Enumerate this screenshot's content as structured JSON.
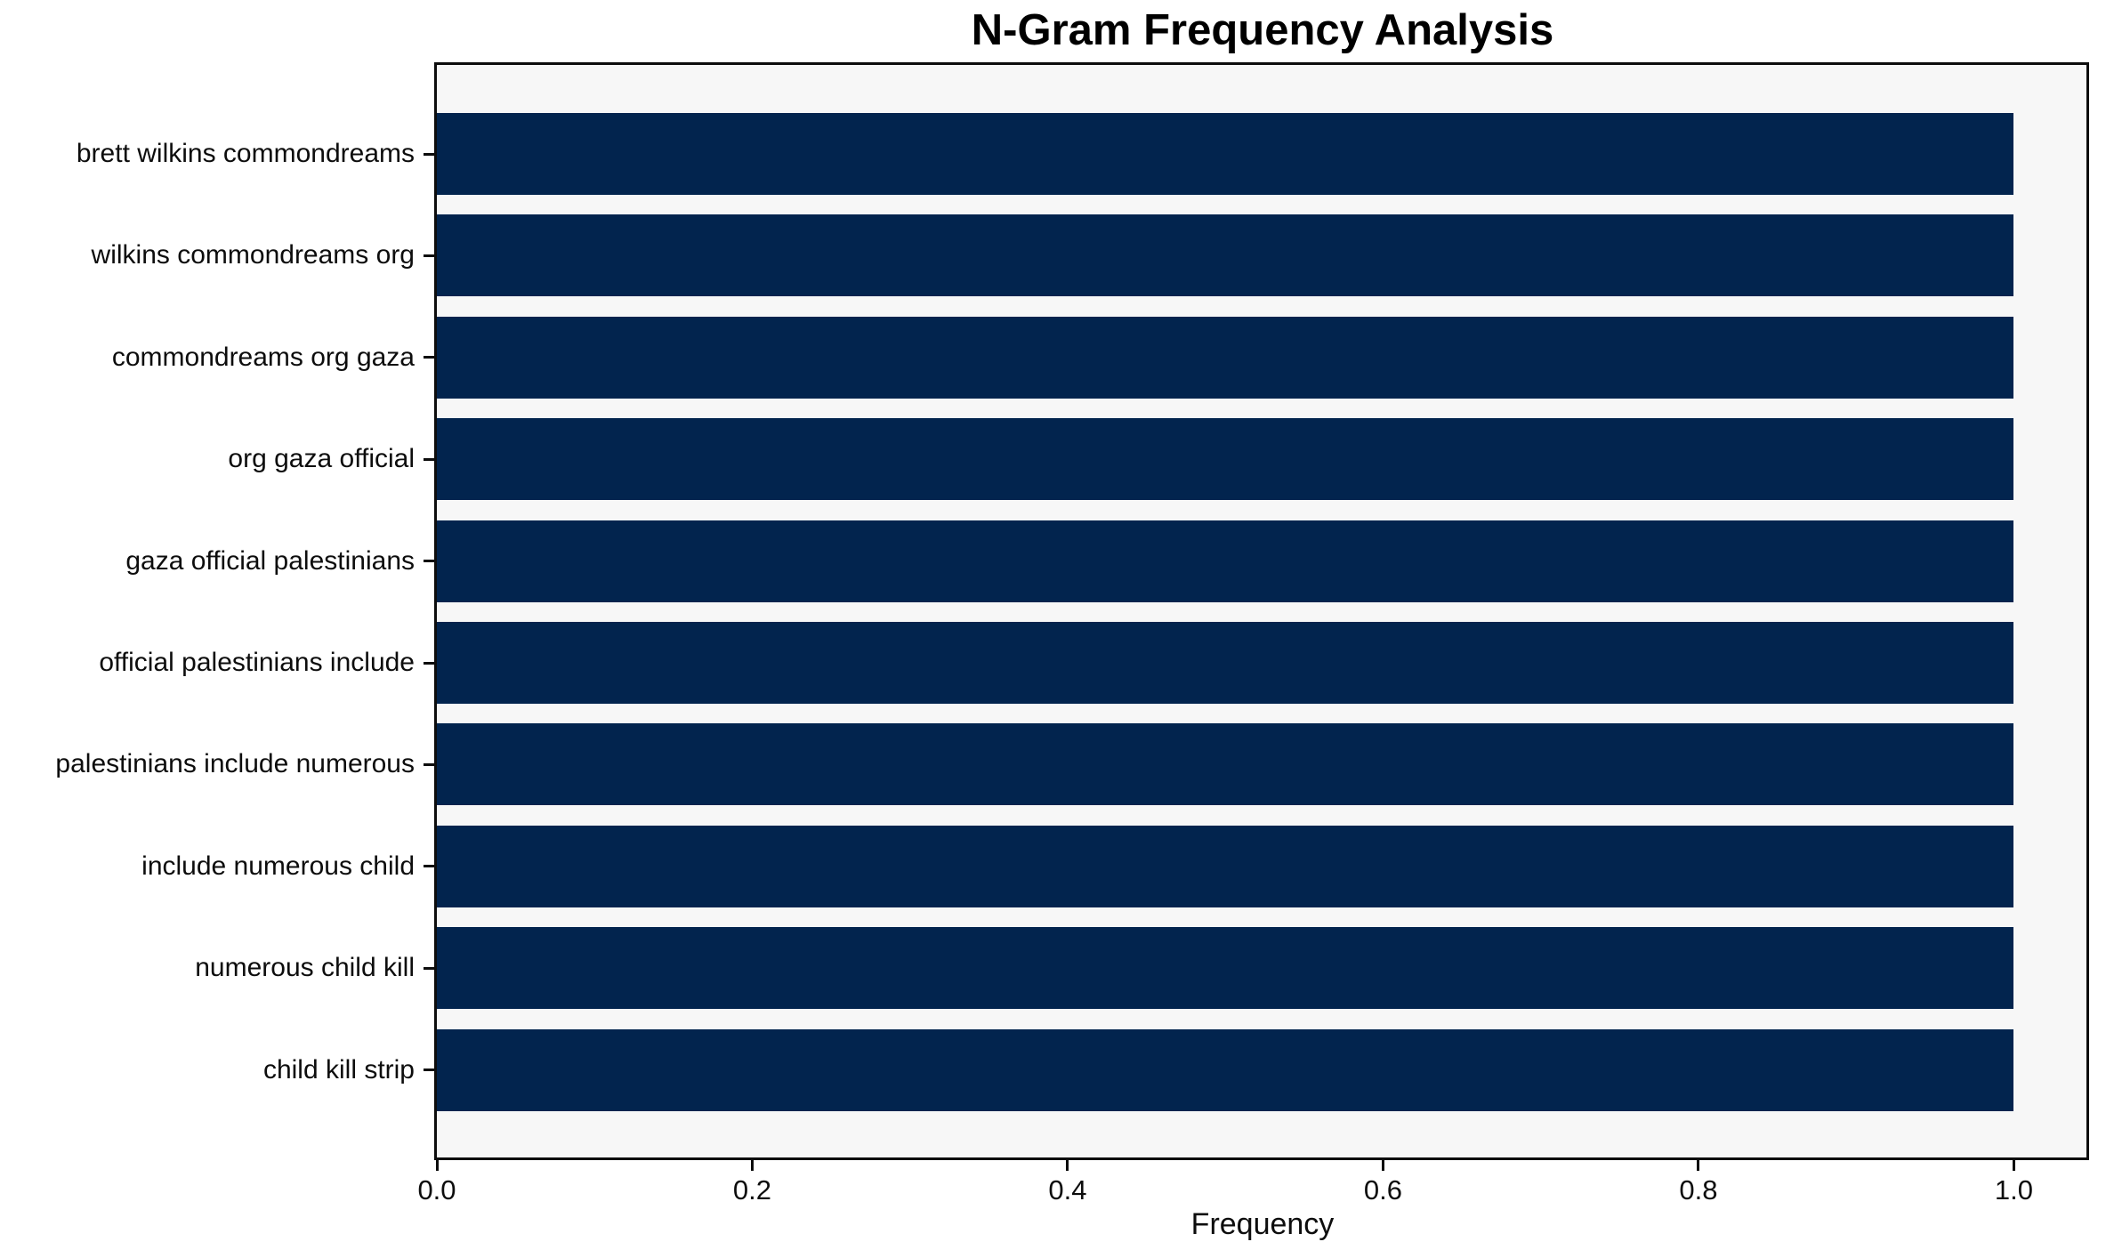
{
  "chart_data": {
    "type": "bar",
    "orientation": "horizontal",
    "title": "N-Gram Frequency Analysis",
    "xlabel": "Frequency",
    "ylabel": "",
    "categories": [
      "brett wilkins commondreams",
      "wilkins commondreams org",
      "commondreams org gaza",
      "org gaza official",
      "gaza official palestinians",
      "official palestinians include",
      "palestinians include numerous",
      "include numerous child",
      "numerous child kill",
      "child kill strip"
    ],
    "values": [
      1.0,
      1.0,
      1.0,
      1.0,
      1.0,
      1.0,
      1.0,
      1.0,
      1.0,
      1.0
    ],
    "xlim": [
      0,
      1.046
    ],
    "x_ticks": [
      {
        "value": 0.0,
        "label": "0.0"
      },
      {
        "value": 0.2,
        "label": "0.2"
      },
      {
        "value": 0.4,
        "label": "0.4"
      },
      {
        "value": 0.6,
        "label": "0.6"
      },
      {
        "value": 0.8,
        "label": "0.8"
      },
      {
        "value": 1.0,
        "label": "1.0"
      }
    ],
    "grid": false,
    "legend": null,
    "colors": {
      "bar": "#02244e",
      "plot_bg": "#f7f7f7",
      "page_bg": "#ffffff",
      "spine": "#0d0d0d",
      "text": "#000000"
    }
  }
}
